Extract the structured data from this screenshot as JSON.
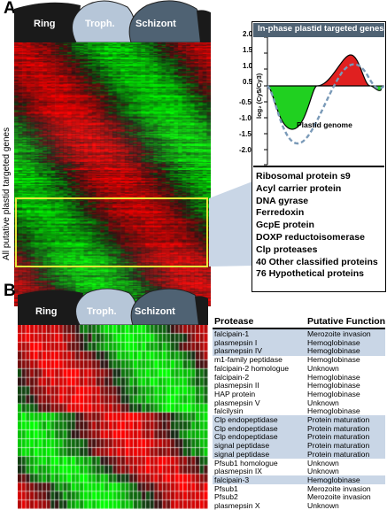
{
  "panel_a": {
    "letter": "A",
    "stages": [
      "Ring",
      "Troph.",
      "Schizont"
    ],
    "vertical_label": "All putative plastid targeted genes",
    "inset_title": "In-phase plastid targeted genes",
    "ylabel": "log₂ (Cy5/Cy3)",
    "y_ticks": [
      "2.0",
      "1.5",
      "1.0",
      "0.5",
      "0",
      "-0.5",
      "-1.0",
      "-1.5",
      "-2.0"
    ],
    "curve_label": "Plastid genome",
    "genes": [
      "Ribosomal protein s9",
      "Acyl carrier protein",
      "DNA gyrase",
      "Ferredoxin",
      "GcpE protein",
      "DOXP reductoisomerase",
      "Clp proteases",
      "40 Other classified proteins",
      "76 Hypothetical proteins"
    ]
  },
  "panel_b": {
    "letter": "B",
    "stages": [
      "Ring",
      "Troph.",
      "Schizont"
    ],
    "col_protease": "Protease",
    "col_function": "Putative Function",
    "rows": [
      {
        "protease": "falcipain-1",
        "function": "Merozoite invasion",
        "shaded": true
      },
      {
        "protease": "plasmepsin I",
        "function": "Hemoglobinase",
        "shaded": true
      },
      {
        "protease": "plasmepsin IV",
        "function": "Hemoglobinase",
        "shaded": true
      },
      {
        "protease": "m1-family peptidase",
        "function": "Hemoglobinase",
        "shaded": false
      },
      {
        "protease": "falcipain-2 homologue",
        "function": "Unknown",
        "shaded": false
      },
      {
        "protease": "falcipain-2",
        "function": "Hemoglobinase",
        "shaded": false
      },
      {
        "protease": "plasmepsin II",
        "function": "Hemoglobinase",
        "shaded": false
      },
      {
        "protease": "HAP protein",
        "function": "Hemoglobinase",
        "shaded": false
      },
      {
        "protease": "plasmepsin V",
        "function": "Unknown",
        "shaded": false
      },
      {
        "protease": "falcilysin",
        "function": "Hemoglobinase",
        "shaded": false
      },
      {
        "protease": "Clp endopeptidase",
        "function": "Protein maturation",
        "shaded": true
      },
      {
        "protease": "Clp endopeptidase",
        "function": "Protein maturation",
        "shaded": true
      },
      {
        "protease": "Clp endopeptidase",
        "function": "Protein maturation",
        "shaded": true
      },
      {
        "protease": "signal peptidase",
        "function": "Protein maturation",
        "shaded": true
      },
      {
        "protease": "signal peptidase",
        "function": "Protein maturation",
        "shaded": true
      },
      {
        "protease": "Pfsub1 homologue",
        "function": "Unknown",
        "shaded": false
      },
      {
        "protease": "plasmepsin IX",
        "function": "Unknown",
        "shaded": false
      },
      {
        "protease": "falcipain-3",
        "function": "Hemoglobinase",
        "shaded": true
      },
      {
        "protease": "Pfsub1",
        "function": "Merozoite invasion",
        "shaded": false
      },
      {
        "protease": "Pfsub2",
        "function": "Merozoite invasion",
        "shaded": false
      },
      {
        "protease": "plasmepsin X",
        "function": "Unknown",
        "shaded": false
      }
    ]
  },
  "colors": {
    "induced": "#e02020",
    "repressed": "#20d020",
    "troph_shape": "#b6c6d8",
    "schizont_shape": "#4f6273",
    "ring_shape": "#1a1a1a",
    "table_shade": "#c9d6e6"
  }
}
